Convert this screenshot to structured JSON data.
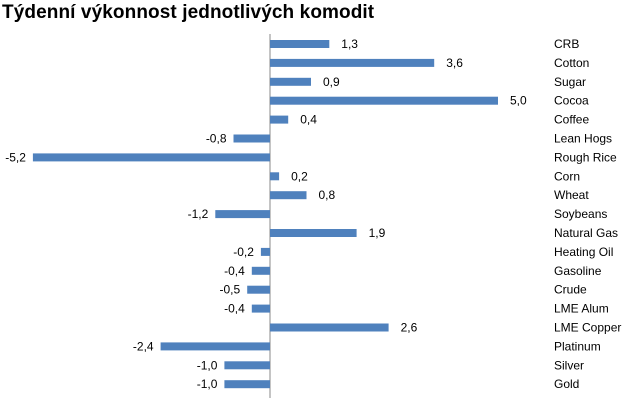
{
  "title": "Týdenní výkonnost jednotlivých komodit",
  "chart_data": {
    "type": "bar",
    "orientation": "horizontal",
    "title": "Týdenní výkonnost jednotlivých komodit",
    "xlabel": "",
    "ylabel": "",
    "categories": [
      "CRB",
      "Cotton",
      "Sugar",
      "Cocoa",
      "Coffee",
      "Lean Hogs",
      "Rough Rice",
      "Corn",
      "Wheat",
      "Soybeans",
      "Natural Gas",
      "Heating Oil",
      "Gasoline",
      "Crude",
      "LME Alum",
      "LME Copper",
      "Platinum",
      "Silver",
      "Gold"
    ],
    "values": [
      1.3,
      3.6,
      0.9,
      5.0,
      0.4,
      -0.8,
      -5.2,
      0.2,
      0.8,
      -1.2,
      1.9,
      -0.2,
      -0.4,
      -0.5,
      -0.4,
      2.6,
      -2.4,
      -1.0,
      -1.0
    ],
    "value_labels": [
      "1,3",
      "3,6",
      "0,9",
      "5,0",
      "0,4",
      "-0,8",
      "-5,2",
      "0,2",
      "0,8",
      "-1,2",
      "1,9",
      "-0,2",
      "-0,4",
      "-0,5",
      "-0,4",
      "2,6",
      "-2,4",
      "-1,0",
      "-1,0"
    ],
    "xlim": [
      -5.2,
      5.0
    ],
    "grid": false,
    "legend": "none",
    "bar_color": "#4f81bd"
  }
}
